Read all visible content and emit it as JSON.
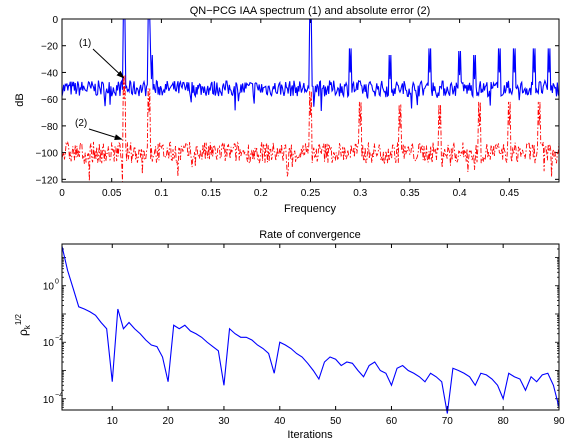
{
  "chart_data": [
    {
      "type": "line",
      "title": "QN−PCG IAA spectrum (1) and absolute error (2)",
      "xlabel": "Frequency",
      "ylabel": "dB",
      "xlim": [
        0,
        0.5
      ],
      "ylim": [
        -122,
        0
      ],
      "xticks": [
        0,
        0.05,
        0.1,
        0.15,
        0.2,
        0.25,
        0.3,
        0.35,
        0.4,
        0.45
      ],
      "xtick_labels": [
        "0",
        "0.05",
        "0.1",
        "0.15",
        "0.2",
        "0.25",
        "0.3",
        "0.35",
        "0.4",
        "0.45"
      ],
      "yticks": [
        0,
        -20,
        -40,
        -60,
        -80,
        -100,
        -120
      ],
      "ytick_labels": [
        "0",
        "−20",
        "−40",
        "−60",
        "−80",
        "−100",
        "−120"
      ],
      "grid": false,
      "series": [
        {
          "label": "(1)",
          "style": "solid",
          "color": "#0000ff",
          "baseline_db": -52,
          "noise_db": 6,
          "peaks": [
            [
              0.0625,
              0
            ],
            [
              0.0875,
              0
            ],
            [
              0.25,
              0
            ],
            [
              0.09,
              -45
            ],
            [
              0.29,
              -40
            ],
            [
              0.33,
              -45
            ],
            [
              0.37,
              -40
            ],
            [
              0.4,
              -42
            ],
            [
              0.415,
              -45
            ],
            [
              0.44,
              -40
            ],
            [
              0.455,
              -40
            ],
            [
              0.475,
              -40
            ],
            [
              0.49,
              -40
            ]
          ]
        },
        {
          "label": "(2)",
          "style": "dashdot",
          "color": "#ff0000",
          "baseline_db": -100,
          "noise_db": 8,
          "peaks": [
            [
              0.0625,
              -60
            ],
            [
              0.0875,
              -70
            ],
            [
              0.25,
              -72
            ],
            [
              0.3,
              -80
            ],
            [
              0.34,
              -82
            ],
            [
              0.38,
              -82
            ],
            [
              0.42,
              -80
            ],
            [
              0.45,
              -80
            ],
            [
              0.48,
              -80
            ]
          ]
        }
      ],
      "annotations": [
        {
          "text": "(1)",
          "xy": [
            0.062,
            -44
          ]
        },
        {
          "text": "(2)",
          "xy": [
            0.06,
            -90
          ]
        }
      ]
    },
    {
      "type": "line",
      "title": "Rate of convergence",
      "xlabel": "Iterations",
      "ylabel": "ρ",
      "ylabel_sub": "k",
      "ylabel_sup": "1/2",
      "xlim": [
        1,
        90
      ],
      "yscale": "log",
      "ylim": [
        4e-05,
        30
      ],
      "xticks": [
        10,
        20,
        30,
        40,
        50,
        60,
        70,
        80,
        90
      ],
      "xtick_labels": [
        "10",
        "20",
        "30",
        "40",
        "50",
        "60",
        "70",
        "80",
        "90"
      ],
      "yticks": [
        1,
        0.01,
        0.0001
      ],
      "ytick_base": "10",
      "ytick_exponents": [
        "0",
        "−2",
        "−4"
      ],
      "grid": false,
      "series": [
        {
          "color": "#0000ff",
          "x": [
            1,
            2,
            3,
            4,
            5,
            6,
            7,
            8,
            9,
            10,
            11,
            12,
            13,
            14,
            15,
            16,
            17,
            18,
            19,
            20,
            21,
            22,
            23,
            24,
            25,
            26,
            27,
            28,
            29,
            30,
            31,
            32,
            33,
            34,
            35,
            36,
            37,
            38,
            39,
            40,
            41,
            42,
            43,
            44,
            45,
            46,
            47,
            48,
            49,
            50,
            51,
            52,
            53,
            54,
            55,
            56,
            57,
            58,
            59,
            60,
            61,
            62,
            63,
            64,
            65,
            66,
            67,
            68,
            69,
            70,
            71,
            72,
            73,
            74,
            75,
            76,
            77,
            78,
            79,
            80,
            81,
            82,
            83,
            84,
            85,
            86,
            87,
            88,
            89,
            90
          ],
          "y": [
            25,
            3.5,
            0.8,
            0.18,
            0.15,
            0.12,
            0.09,
            0.05,
            0.03,
            0.0004,
            0.15,
            0.03,
            0.05,
            0.03,
            0.02,
            0.012,
            0.008,
            0.007,
            0.003,
            0.0004,
            0.04,
            0.03,
            0.04,
            0.025,
            0.02,
            0.015,
            0.01,
            0.007,
            0.005,
            0.0003,
            0.03,
            0.02,
            0.015,
            0.015,
            0.012,
            0.008,
            0.006,
            0.004,
            0.0008,
            0.01,
            0.008,
            0.006,
            0.004,
            0.003,
            0.0018,
            0.001,
            0.0005,
            0.002,
            0.003,
            0.0025,
            0.0015,
            0.002,
            0.0018,
            0.001,
            0.0006,
            0.0015,
            0.002,
            0.001,
            0.0008,
            0.0003,
            0.0012,
            0.0015,
            0.001,
            0.0008,
            0.0006,
            0.0004,
            0.0008,
            0.0006,
            0.0004,
            3e-05,
            0.0012,
            0.001,
            0.0008,
            0.0006,
            0.0003,
            0.0008,
            0.0007,
            0.0005,
            0.0003,
            0.0001,
            0.0008,
            0.0006,
            0.0005,
            0.0002,
            0.0006,
            0.0004,
            0.0007,
            0.0008,
            0.0003,
            5e-05
          ]
        }
      ]
    }
  ]
}
